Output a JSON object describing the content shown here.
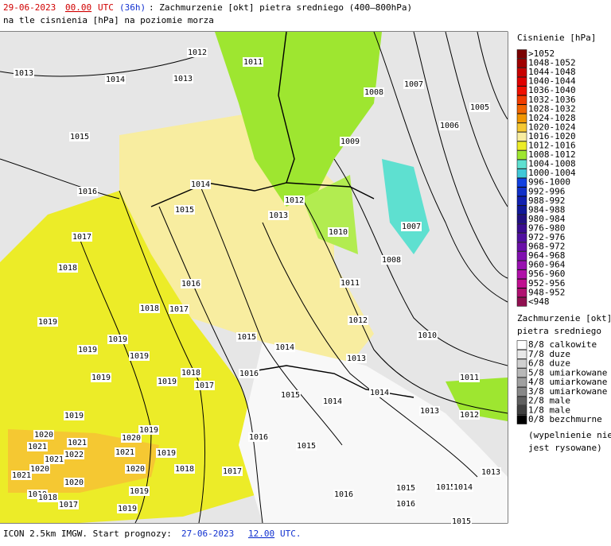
{
  "header": {
    "date": "29-06-2023",
    "hour": "00.00",
    "utc": "UTC",
    "lead": "(36h)",
    "title": ": Zachmurzenie [okt] pietra sredniego (400–800hPa)",
    "subtitle": "na tle cisnienia [hPa] na poziomie morza"
  },
  "isobar_labels": [
    "1012",
    "1011",
    "1013",
    "1014",
    "1013",
    "1008",
    "1007",
    "1005",
    "1015",
    "1009",
    "1006",
    "1016",
    "1014",
    "1015",
    "1012",
    "1013",
    "1010",
    "1007",
    "1017",
    "1008",
    "1018",
    "1016",
    "1011",
    "1018",
    "1017",
    "1019",
    "1012",
    "1010",
    "1019",
    "1015",
    "1014",
    "1019",
    "1019",
    "1013",
    "1019",
    "1018",
    "1019",
    "1017",
    "1016",
    "1011",
    "1015",
    "1014",
    "1014",
    "1013",
    "1012",
    "1019",
    "1019",
    "1016",
    "1015",
    "1020",
    "1021",
    "1020",
    "1021",
    "1022",
    "1021",
    "1019",
    "1021",
    "1020",
    "1018",
    "1017",
    "1020",
    "1021",
    "1020",
    "1013",
    "1015",
    "1015",
    "1014",
    "1019",
    "1019",
    "1018",
    "1017",
    "1016",
    "1016",
    "1019",
    "1015"
  ],
  "legend": {
    "pressure_title": "Cisnienie [hPa]",
    "pressure_items": [
      ">1052",
      "1048-1052",
      "1044-1048",
      "1040-1044",
      "1036-1040",
      "1032-1036",
      "1028-1032",
      "1024-1028",
      "1020-1024",
      "1016-1020",
      "1012-1016",
      "1008-1012",
      "1004-1008",
      "1000-1004",
      "996-1000",
      "992-996",
      "988-992",
      "984-988",
      "980-984",
      "976-980",
      "972-976",
      "968-972",
      "964-968",
      "960-964",
      "956-960",
      "952-956",
      "948-952",
      "<948"
    ],
    "cloud_title": "Zachmurzenie [okt]",
    "cloud_subtitle": "pietra sredniego",
    "cloud_items": [
      "8/8 calkowite",
      "7/8 duze",
      "6/8 duze",
      "5/8 umiarkowane",
      "4/8 umiarkowane",
      "3/8 umiarkowane",
      "2/8 male",
      "1/8 male",
      "0/8 bezchmurne"
    ],
    "note": [
      "(wypelnienie nie",
      "jest rysowane)"
    ]
  },
  "footer": {
    "model": "ICON 2.5km IMGW. Start prognozy: ",
    "start_date": "27-06-2023",
    "start_hour": "12.00",
    "utc": "UTC."
  }
}
